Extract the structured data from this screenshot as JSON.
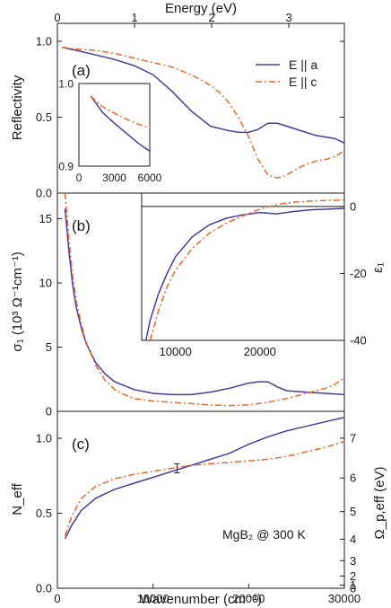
{
  "chart_data": {
    "type": "line",
    "colors": {
      "a": "#4b3a9a",
      "c": "#e8682a"
    },
    "top_axis": {
      "label": "Energy (eV)",
      "range": [
        0,
        3.72
      ],
      "ticks": [
        0,
        1,
        2,
        3
      ]
    },
    "bottom_axis": {
      "label": "Wavenumber (cm⁻¹)",
      "range": [
        0,
        30000
      ],
      "ticks": [
        0,
        10000,
        20000,
        30000
      ]
    },
    "legend": {
      "position": "top-right",
      "entries": [
        "E || a",
        "E || c"
      ]
    },
    "panels": [
      {
        "label": "(a)",
        "ylabel": "Reflectivity",
        "ylim": [
          0.0,
          1.0
        ],
        "yticks": [
          "0.0",
          "0.5",
          "1.0"
        ],
        "series": [
          {
            "key": "a",
            "x": [
              500,
              2000,
              4000,
              6000,
              8000,
              10000,
              12000,
              14000,
              16000,
              18000,
              19000,
              20000,
              21000,
              22000,
              23000,
              24000,
              25000,
              26000,
              27000,
              28000,
              29000,
              30000
            ],
            "y": [
              0.96,
              0.94,
              0.91,
              0.88,
              0.84,
              0.78,
              0.67,
              0.54,
              0.44,
              0.41,
              0.4,
              0.4,
              0.42,
              0.46,
              0.46,
              0.44,
              0.42,
              0.4,
              0.38,
              0.37,
              0.36,
              0.33
            ]
          },
          {
            "key": "c",
            "x": [
              500,
              2000,
              4000,
              6000,
              8000,
              10000,
              12000,
              14000,
              16000,
              17000,
              18000,
              19000,
              20000,
              21000,
              22000,
              23000,
              24000,
              25000,
              26000,
              27000,
              28000,
              29000,
              30000
            ],
            "y": [
              0.96,
              0.95,
              0.94,
              0.92,
              0.89,
              0.86,
              0.83,
              0.78,
              0.71,
              0.66,
              0.59,
              0.49,
              0.37,
              0.22,
              0.12,
              0.1,
              0.12,
              0.16,
              0.19,
              0.21,
              0.22,
              0.24,
              0.28
            ]
          }
        ],
        "inset": {
          "xlim": [
            0,
            6000
          ],
          "ylim": [
            0.9,
            1.0
          ],
          "xticks": [
            "0",
            "3000",
            "6000"
          ],
          "yticks": [
            "0.9",
            "1.0"
          ],
          "series": [
            {
              "key": "a",
              "x": [
                1000,
                1500,
                2000,
                3000,
                4000,
                5000,
                6000
              ],
              "y": [
                0.985,
                0.975,
                0.965,
                0.952,
                0.94,
                0.928,
                0.918
              ]
            },
            {
              "key": "c",
              "x": [
                1000,
                1500,
                2000,
                3000,
                4000,
                5000,
                6000
              ],
              "y": [
                0.985,
                0.978,
                0.972,
                0.964,
                0.957,
                0.951,
                0.946
              ]
            }
          ]
        }
      },
      {
        "label": "(b)",
        "ylabel": "σ₁ (10³ Ω⁻¹cm⁻¹)",
        "ylim": [
          0,
          17
        ],
        "yticks": [
          "0",
          "5",
          "10",
          "15"
        ],
        "series": [
          {
            "key": "a",
            "x": [
              800,
              1200,
              1600,
              2000,
              2500,
              3000,
              4000,
              5000,
              6000,
              7000,
              8000,
              10000,
              12000,
              14000,
              16000,
              18000,
              20000,
              21000,
              22000,
              23000,
              24000,
              26000,
              28000,
              30000
            ],
            "y": [
              15.8,
              12.5,
              9.8,
              8.0,
              6.5,
              5.3,
              3.8,
              2.9,
              2.3,
              2.0,
              1.7,
              1.4,
              1.3,
              1.3,
              1.5,
              1.8,
              2.2,
              2.3,
              2.3,
              1.9,
              1.6,
              1.5,
              1.4,
              1.3
            ]
          },
          {
            "key": "c",
            "x": [
              800,
              1200,
              1600,
              2000,
              2500,
              3000,
              4000,
              5000,
              6000,
              7000,
              8000,
              10000,
              12000,
              14000,
              16000,
              18000,
              20000,
              22000,
              24000,
              26000,
              28000,
              29000,
              30000
            ],
            "y": [
              17.0,
              13.5,
              10.5,
              8.5,
              6.8,
              5.4,
              3.6,
              2.4,
              1.7,
              1.3,
              1.0,
              0.8,
              0.7,
              0.6,
              0.5,
              0.45,
              0.5,
              0.7,
              1.0,
              1.4,
              1.8,
              2.1,
              2.6
            ]
          }
        ],
        "inset": {
          "xlim": [
            6000,
            30000
          ],
          "ylim": [
            -40,
            4
          ],
          "xticks": [
            "10000",
            "20000"
          ],
          "yticks": [
            "0",
            "-20",
            "-40"
          ],
          "ylabel": "ε₁",
          "series": [
            {
              "key": "a",
              "x": [
                6500,
                7000,
                8000,
                9000,
                10000,
                12000,
                14000,
                16000,
                18000,
                20000,
                22000,
                24000,
                26000,
                28000,
                30000
              ],
              "y": [
                -40,
                -34,
                -26,
                -20,
                -15,
                -9,
                -5.5,
                -3.5,
                -2.5,
                -1.8,
                -2.2,
                -1.5,
                -1.0,
                -0.8,
                -0.6
              ]
            },
            {
              "key": "c",
              "x": [
                7000,
                8000,
                9000,
                10000,
                12000,
                14000,
                16000,
                18000,
                20000,
                22000,
                24000,
                26000,
                28000,
                30000
              ],
              "y": [
                -40,
                -31,
                -24,
                -19,
                -12.5,
                -8,
                -5,
                -2.8,
                -0.8,
                0.6,
                1.3,
                1.6,
                1.8,
                1.9
              ]
            }
          ]
        }
      },
      {
        "label": "(c)",
        "ylabel": "N_eff",
        "ylim": [
          0,
          1.18
        ],
        "yticks": [
          "0.0",
          "0.5",
          "1.0"
        ],
        "right_ylabel": "Ω_p,eff (eV)",
        "right_yticks": [
          "0",
          "1",
          "2",
          "3",
          "4",
          "5",
          "6",
          "7"
        ],
        "annotation": "MgB₂ @ 300 K",
        "errorbar": {
          "x": 12500,
          "y": 0.8,
          "err": 0.03
        },
        "series": [
          {
            "key": "a",
            "x": [
              800,
              1500,
              2500,
              4000,
              6000,
              8000,
              10000,
              12000,
              14000,
              16000,
              18000,
              20000,
              22000,
              24000,
              26000,
              28000,
              30000
            ],
            "y": [
              0.33,
              0.42,
              0.52,
              0.6,
              0.66,
              0.7,
              0.74,
              0.78,
              0.82,
              0.86,
              0.9,
              0.96,
              1.01,
              1.05,
              1.08,
              1.11,
              1.14
            ]
          },
          {
            "key": "c",
            "x": [
              800,
              1500,
              2500,
              4000,
              6000,
              8000,
              10000,
              12000,
              14000,
              16000,
              18000,
              20000,
              22000,
              24000,
              26000,
              28000,
              30000
            ],
            "y": [
              0.35,
              0.48,
              0.6,
              0.68,
              0.73,
              0.76,
              0.78,
              0.8,
              0.82,
              0.83,
              0.84,
              0.85,
              0.86,
              0.88,
              0.91,
              0.94,
              0.98
            ]
          }
        ]
      }
    ]
  }
}
